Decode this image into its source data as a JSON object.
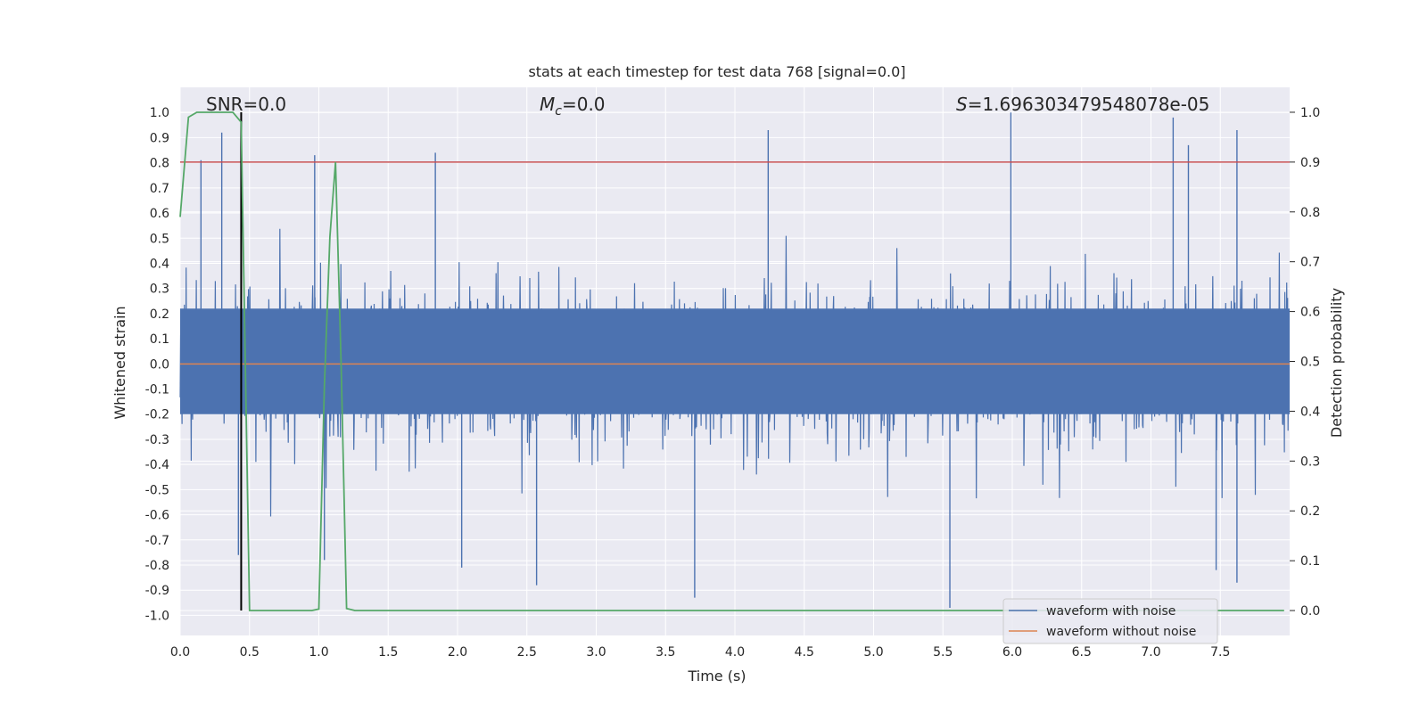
{
  "chart_data": {
    "type": "line",
    "title": "stats at each timestep for test data 768 [signal=0.0]",
    "xlabel": "Time (s)",
    "ylabel": "Whitened strain",
    "ylabel_right": "Detection probability",
    "xlim": [
      0.0,
      8.0
    ],
    "ylim": [
      -1.08,
      1.1
    ],
    "ylim_right": [
      -0.05,
      1.05
    ],
    "x_ticks": [
      0.0,
      0.5,
      1.0,
      1.5,
      2.0,
      2.5,
      3.0,
      3.5,
      4.0,
      4.5,
      5.0,
      5.5,
      6.0,
      6.5,
      7.0,
      7.5
    ],
    "x_tick_labels": [
      "0.0",
      "0.5",
      "1.0",
      "1.5",
      "2.0",
      "2.5",
      "3.0",
      "3.5",
      "4.0",
      "4.5",
      "5.0",
      "5.5",
      "6.0",
      "6.5",
      "7.0",
      "7.5"
    ],
    "y_ticks": [
      1.0,
      0.9,
      0.8,
      0.7,
      0.6,
      0.5,
      0.4,
      0.3,
      0.2,
      0.1,
      0.0,
      -0.1,
      -0.2,
      -0.3,
      -0.4,
      -0.5,
      -0.6,
      -0.7,
      -0.8,
      -0.9,
      -1.0
    ],
    "y_tick_labels": [
      "1.0",
      "0.9",
      "0.8",
      "0.7",
      "0.6",
      "0.5",
      "0.4",
      "0.3",
      "0.2",
      "0.1",
      "0.0",
      "-0.1",
      "-0.2",
      "-0.3",
      "-0.4",
      "-0.5",
      "-0.6",
      "-0.7",
      "-0.8",
      "-0.9",
      "-1.0"
    ],
    "y2_ticks": [
      1.0,
      0.9,
      0.8,
      0.7,
      0.6,
      0.5,
      0.4,
      0.3,
      0.2,
      0.1,
      0.0
    ],
    "y2_tick_labels": [
      "1.0",
      "0.9",
      "0.8",
      "0.7",
      "0.6",
      "0.5",
      "0.4",
      "0.3",
      "0.2",
      "0.1",
      "0.0"
    ],
    "annotations": {
      "snr": "SNR=0.0",
      "mc_symbol": "M",
      "mc_sub": "c",
      "mc_value": "=0.0",
      "s_symbol": "S",
      "s_value": "=1.696303479548078e-05"
    },
    "threshold_right": 0.9,
    "marker_time": 0.44,
    "noise_envelope": {
      "typical_positive": 0.4,
      "typical_negative": -0.4,
      "max": 1.0,
      "min": -0.97,
      "seed": 768
    },
    "noise_spikes": [
      {
        "x": 0.3,
        "y": 0.92
      },
      {
        "x": 0.15,
        "y": 0.81
      },
      {
        "x": 0.97,
        "y": 0.83
      },
      {
        "x": 1.84,
        "y": 0.84
      },
      {
        "x": 4.24,
        "y": 0.93
      },
      {
        "x": 5.99,
        "y": 1.0
      },
      {
        "x": 7.16,
        "y": 0.98
      },
      {
        "x": 7.62,
        "y": 0.93
      },
      {
        "x": 7.27,
        "y": 0.87
      },
      {
        "x": 3.71,
        "y": -0.93
      },
      {
        "x": 5.55,
        "y": -0.97
      },
      {
        "x": 2.57,
        "y": -0.88
      },
      {
        "x": 1.04,
        "y": -0.78
      },
      {
        "x": 0.42,
        "y": -0.76
      },
      {
        "x": 2.03,
        "y": -0.81
      },
      {
        "x": 7.62,
        "y": -0.87
      },
      {
        "x": 7.47,
        "y": -0.82
      }
    ],
    "series": [
      {
        "name": "waveform with noise",
        "color": "#4c72b0",
        "axis": "left"
      },
      {
        "name": "waveform without noise",
        "color": "#dd8452",
        "axis": "left",
        "x": [
          0.0,
          8.0
        ],
        "y": [
          0.0,
          0.0
        ]
      },
      {
        "name": "detection probability",
        "color": "#55a868",
        "axis": "right",
        "x": [
          0.0,
          0.06,
          0.12,
          0.2,
          0.3,
          0.38,
          0.44,
          0.5,
          0.6,
          0.8,
          0.95,
          1.0,
          1.04,
          1.08,
          1.12,
          1.16,
          1.2,
          1.26,
          2.0,
          4.0,
          6.0,
          7.96
        ],
        "y": [
          0.79,
          0.99,
          1.0,
          1.0,
          1.0,
          1.0,
          0.98,
          0.0,
          0.0,
          0.0,
          0.0,
          0.003,
          0.45,
          0.75,
          0.9,
          0.5,
          0.004,
          0.0,
          0.0,
          0.0,
          0.0,
          0.0
        ]
      }
    ],
    "legend": {
      "position": "lower-right",
      "entries": [
        "waveform with noise",
        "waveform without noise"
      ]
    },
    "grid": true,
    "colors": {
      "axes_bg": "#eaeaf2",
      "grid": "#ffffff",
      "threshold": "#c44e52",
      "marker": "#000000"
    }
  }
}
